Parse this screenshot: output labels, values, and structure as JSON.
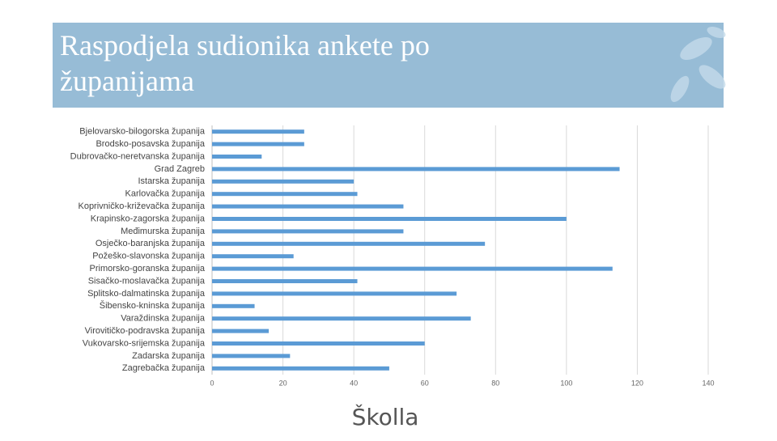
{
  "chart_data": {
    "type": "bar",
    "orientation": "horizontal",
    "title": "Raspodjela sudionika ankete po županijama",
    "categories": [
      "Bjelovarsko-bilogorska županija",
      "Brodsko-posavska županija",
      "Dubrovačko-neretvanska županija",
      "Grad Zagreb",
      "Istarska županija",
      "Karlovačka županija",
      "Koprivničko-križevačka županija",
      "Krapinsko-zagorska županija",
      "Međimurska županija",
      "Osječko-baranjska županija",
      "Požeško-slavonska županija",
      "Primorsko-goranska županija",
      "Sisačko-moslavačka županija",
      "Splitsko-dalmatinska županija",
      "Šibensko-kninska županija",
      "Varaždinska županija",
      "Virovitičko-podravska županija",
      "Vukovarsko-srijemska županija",
      "Zadarska županija",
      "Zagrebačka županija"
    ],
    "values": [
      26,
      26,
      14,
      115,
      40,
      41,
      54,
      100,
      54,
      77,
      23,
      113,
      41,
      69,
      12,
      73,
      16,
      60,
      22,
      50
    ],
    "color": "#5b9bd5",
    "xlim": [
      0,
      140
    ],
    "xticks": [
      0,
      20,
      40,
      60,
      80,
      100,
      120,
      140
    ],
    "grid": true
  },
  "logo": "Školla"
}
